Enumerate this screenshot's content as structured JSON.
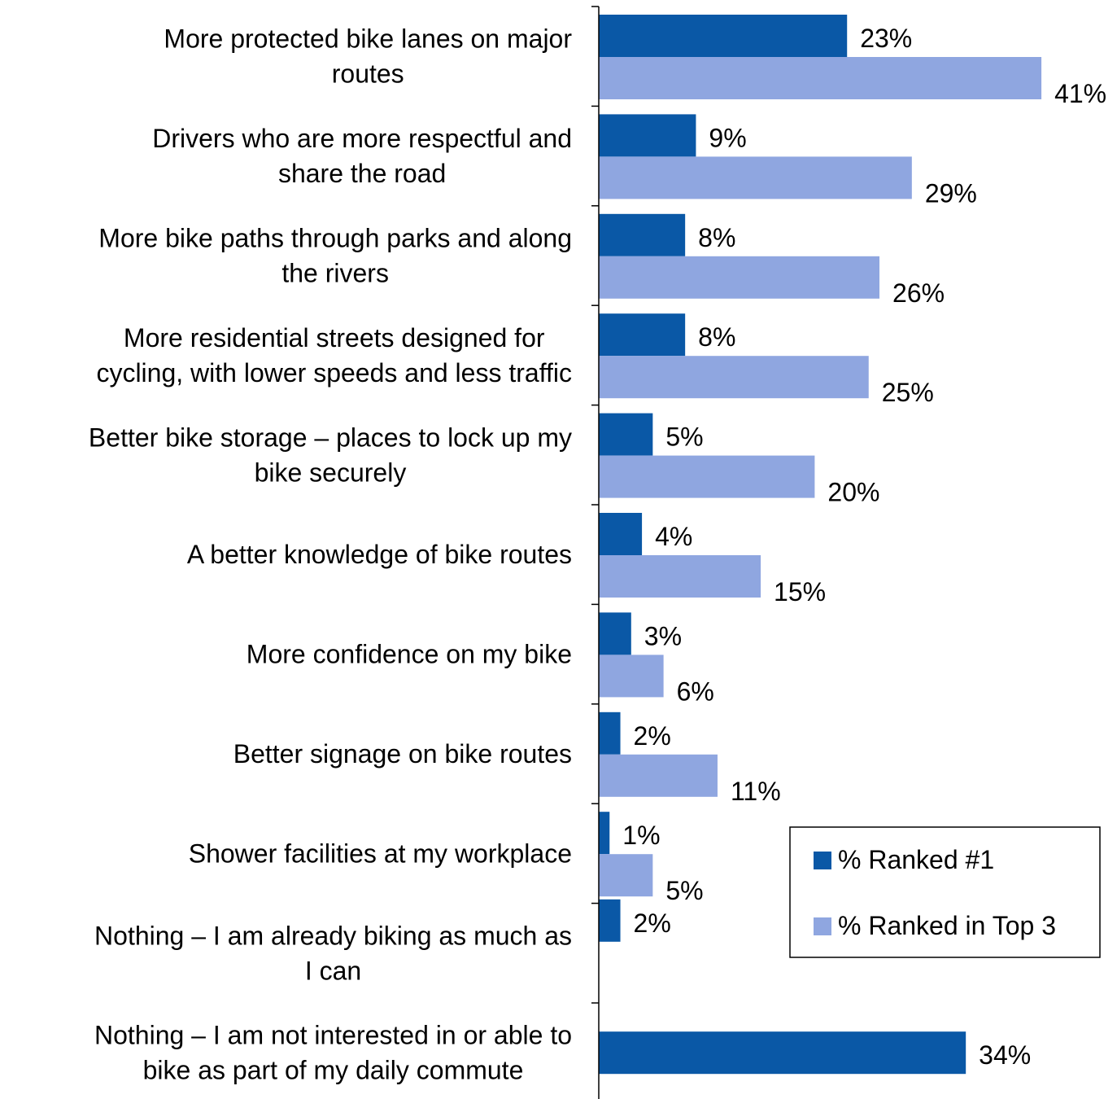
{
  "chart_data": {
    "type": "bar",
    "orientation": "horizontal",
    "categories": [
      [
        "More protected bike lanes on major",
        "routes"
      ],
      [
        "Drivers who are more respectful and",
        "share the road"
      ],
      [
        "More bike paths through parks and along",
        "the rivers"
      ],
      [
        "More residential streets designed for",
        "cycling, with lower speeds and less traffic"
      ],
      [
        "Better bike storage – places to lock up my",
        "bike securely"
      ],
      [
        "A better knowledge of bike routes"
      ],
      [
        "More confidence on my bike"
      ],
      [
        "Better signage on bike routes"
      ],
      [
        "Shower facilities at my workplace"
      ],
      [
        "Nothing – I am already biking as much as",
        "I can"
      ],
      [
        "Nothing – I am not interested in or able to",
        "bike as part of my daily commute"
      ]
    ],
    "series": [
      {
        "name": "% Ranked #1",
        "color": "#0a58a6",
        "values": [
          23,
          9,
          8,
          8,
          5,
          4,
          3,
          2,
          1,
          2,
          34
        ],
        "labels": [
          "23%",
          "9%",
          "8%",
          "8%",
          "5%",
          "4%",
          "3%",
          "2%",
          "1%",
          "2%",
          "34%"
        ]
      },
      {
        "name": "% Ranked in Top 3",
        "color": "#8fa6e0",
        "values": [
          41,
          29,
          26,
          25,
          20,
          15,
          6,
          11,
          5,
          null,
          null
        ],
        "labels": [
          "41%",
          "29%",
          "26%",
          "25%",
          "20%",
          "15%",
          "6%",
          "11%",
          "5%",
          null,
          null
        ]
      }
    ],
    "xlim": [
      0,
      45
    ],
    "legend_position": "bottom-right",
    "grid": false
  }
}
